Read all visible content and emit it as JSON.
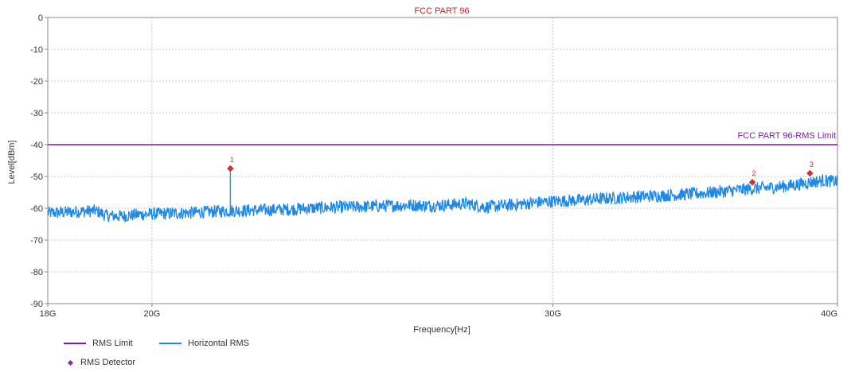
{
  "chart_data": {
    "type": "line",
    "title": "FCC PART 96",
    "xlabel": "Frequency[Hz]",
    "ylabel": "Level[dBm]",
    "x_scale": "log",
    "xlim": [
      18,
      40
    ],
    "x_unit": "GHz",
    "ylim": [
      -90,
      0
    ],
    "grid": true,
    "x_ticks": [
      {
        "value": 18,
        "label": "18G"
      },
      {
        "value": 20,
        "label": "20G"
      },
      {
        "value": 30,
        "label": "30G"
      },
      {
        "value": 40,
        "label": "40G"
      }
    ],
    "y_ticks": [
      0,
      -10,
      -20,
      -30,
      -40,
      -50,
      -60,
      -70,
      -80,
      -90
    ],
    "limit_line": {
      "label": "FCC PART 96-RMS Limit",
      "value": -40
    },
    "series": [
      {
        "name": "Horizontal RMS",
        "x": [
          18.0,
          18.3,
          18.6,
          18.9,
          19.1,
          19.4,
          19.7,
          20.0,
          20.4,
          20.8,
          21.2,
          21.6,
          22.0,
          22.5,
          23.0,
          23.5,
          24.0,
          24.5,
          25.0,
          25.5,
          26.0,
          26.5,
          27.0,
          27.5,
          28.0,
          28.5,
          29.0,
          29.5,
          30.0,
          30.5,
          31.0,
          31.5,
          32.0,
          32.5,
          33.0,
          33.5,
          34.0,
          34.5,
          35.0,
          35.5,
          36.0,
          36.5,
          37.0,
          37.5,
          38.0,
          38.5,
          39.0,
          39.5,
          40.0
        ],
        "y": [
          -61.5,
          -61.3,
          -61.0,
          -60.8,
          -62.3,
          -62.5,
          -62.0,
          -61.8,
          -61.6,
          -61.4,
          -61.1,
          -60.8,
          -60.7,
          -60.5,
          -60.3,
          -60.0,
          -59.7,
          -59.6,
          -59.4,
          -59.2,
          -59.0,
          -59.2,
          -58.9,
          -58.5,
          -59.6,
          -59.2,
          -58.7,
          -58.2,
          -57.8,
          -57.6,
          -57.4,
          -57.0,
          -56.8,
          -56.4,
          -56.2,
          -56.0,
          -55.8,
          -55.5,
          -55.2,
          -54.8,
          -54.4,
          -54.0,
          -53.7,
          -53.4,
          -53.0,
          -52.4,
          -51.7,
          -51.3,
          -51.6
        ],
        "noise_db": 2.0
      },
      {
        "name": "Horizontal RMS spike",
        "x": [
          21.65,
          21.65
        ],
        "y": [
          -61.0,
          -47.5
        ]
      }
    ],
    "markers": [
      {
        "label": "1",
        "x": 21.65,
        "y": -47.5
      },
      {
        "label": "2",
        "x": 36.7,
        "y": -51.8
      },
      {
        "label": "3",
        "x": 38.9,
        "y": -49.0
      }
    ],
    "legend": {
      "position": "bottom-left",
      "items": [
        {
          "label": "RMS Limit",
          "kind": "line",
          "color": "#7b1fa2"
        },
        {
          "label": "Horizontal RMS",
          "kind": "line",
          "color": "#1e88e5"
        },
        {
          "label": "RMS Detector",
          "kind": "diamond",
          "color": "#8e24aa"
        }
      ]
    },
    "colors": {
      "limit": "#7b1fa2",
      "trace": "#1e88e5",
      "marker": "#d32f2f",
      "title": "#c62828",
      "grid": "#c8c8c8"
    }
  }
}
